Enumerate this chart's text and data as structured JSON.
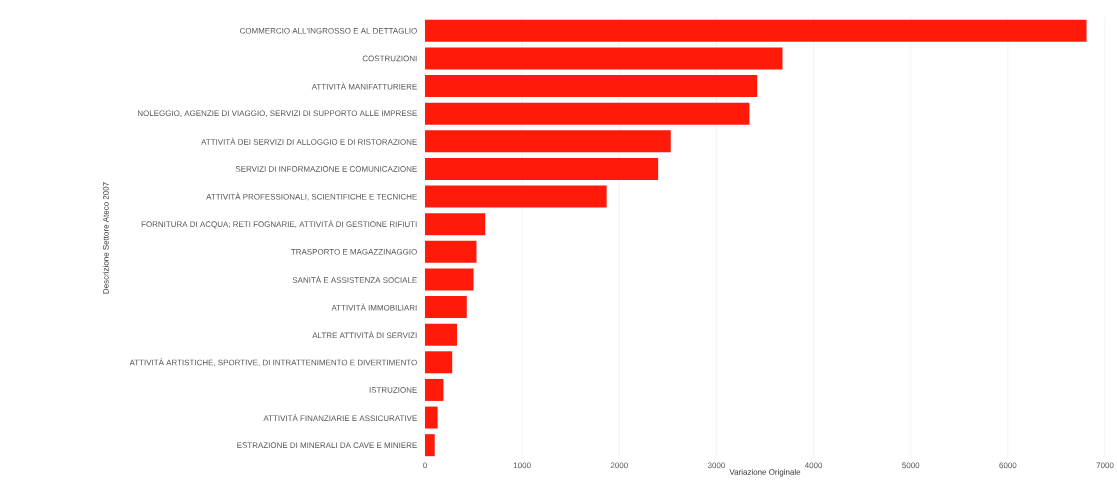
{
  "chart_data": {
    "type": "bar",
    "orientation": "horizontal",
    "xlabel": "Variazione Originale",
    "ylabel": "Descrizione Settore Ateco 2007",
    "categories": [
      "COMMERCIO ALL'INGROSSO E AL DETTAGLIO",
      "COSTRUZIONI",
      "ATTIVITÀ MANIFATTURIERE",
      "NOLEGGIO, AGENZIE DI VIAGGIO, SERVIZI DI SUPPORTO ALLE IMPRESE",
      "ATTIVITÀ DEI SERVIZI DI ALLOGGIO E DI RISTORAZIONE",
      "SERVIZI DI INFORMAZIONE E COMUNICAZIONE",
      "ATTIVITÀ PROFESSIONALI, SCIENTIFICHE E TECNICHE",
      "FORNITURA DI ACQUA; RETI FOGNARIE, ATTIVITÀ DI GESTIONE RIFIUTI",
      "TRASPORTO E MAGAZZINAGGIO",
      "SANITÀ E ASSISTENZA SOCIALE",
      "ATTIVITÀ IMMOBILIARI",
      "ALTRE ATTIVITÀ DI SERVIZI",
      "ATTIVITÀ ARTISTICHE, SPORTIVE, DI INTRATTENIMENTO E DIVERTIMENTO",
      "ISTRUZIONE",
      "ATTIVITÀ FINANZIARIE E ASSICURATIVE",
      "ESTRAZIONE DI MINERALI DA CAVE E MINIERE"
    ],
    "values": [
      6810,
      3680,
      3420,
      3340,
      2530,
      2400,
      1870,
      620,
      530,
      500,
      430,
      330,
      280,
      190,
      130,
      100
    ],
    "color": "#ff1a0a",
    "xlim": [
      0,
      7000
    ],
    "xticks": [
      0,
      1000,
      2000,
      3000,
      4000,
      5000,
      6000,
      7000
    ],
    "grid": "x"
  }
}
